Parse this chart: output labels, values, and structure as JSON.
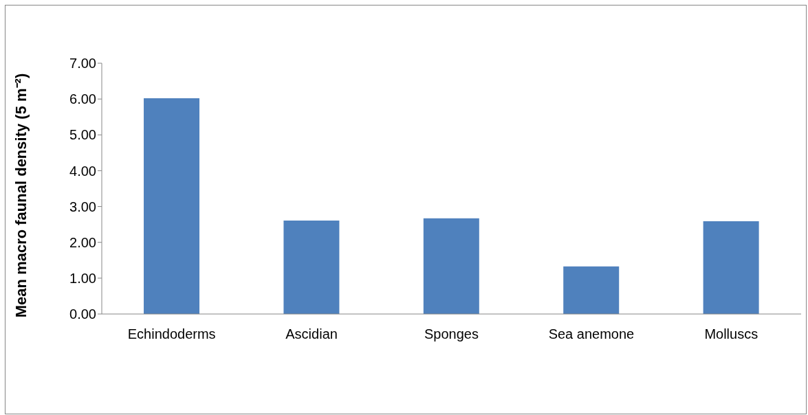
{
  "chart_data": {
    "type": "bar",
    "ylabel": "Mean macro faunal density (5 m⁻²)",
    "categories": [
      "Echindoderms",
      "Ascidian",
      "Sponges",
      "Sea anemone",
      "Molluscs"
    ],
    "values": [
      6.02,
      2.61,
      2.67,
      1.33,
      2.59
    ],
    "color": "#4f81bd",
    "ylim": [
      0,
      7
    ],
    "yticks": [
      {
        "value": 0,
        "label": "0.00"
      },
      {
        "value": 1,
        "label": "1.00"
      },
      {
        "value": 2,
        "label": "2.00"
      },
      {
        "value": 3,
        "label": "3.00"
      },
      {
        "value": 4,
        "label": "4.00"
      },
      {
        "value": 5,
        "label": "5.00"
      },
      {
        "value": 6,
        "label": "6.00"
      },
      {
        "value": 7,
        "label": "7.00"
      }
    ],
    "grid": false
  }
}
